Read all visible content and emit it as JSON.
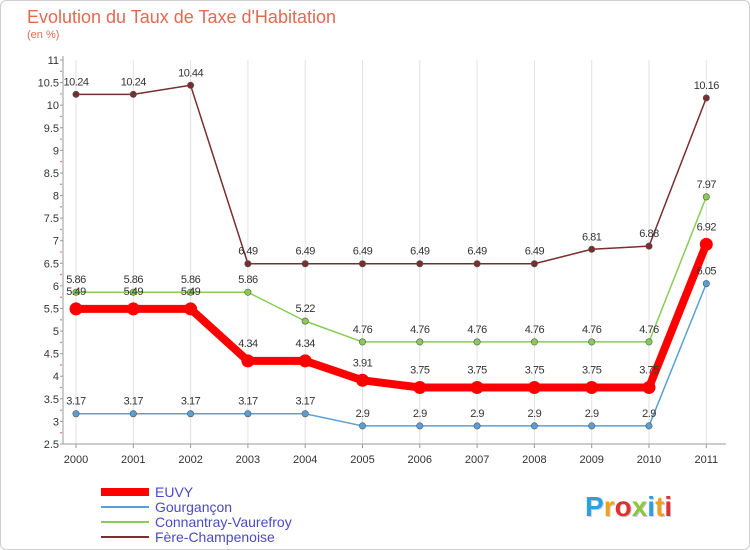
{
  "title": "Evolution du Taux de Taxe d'Habitation",
  "subtitle": "(en %)",
  "brand": {
    "letters": [
      "P",
      "r",
      "o",
      "x",
      "i",
      "t",
      "i"
    ],
    "colors": [
      "#2aa0e0",
      "#f0a020",
      "#e03030",
      "#8cc63f",
      "#2aa0e0",
      "#f0a020",
      "#e03030"
    ]
  },
  "chart_data": {
    "type": "line",
    "x": [
      "2000",
      "2001",
      "2002",
      "2003",
      "2004",
      "2005",
      "2006",
      "2007",
      "2008",
      "2009",
      "2010",
      "2011"
    ],
    "ylim": [
      2.5,
      11
    ],
    "yticks": [
      "2.5",
      "3",
      "3.5",
      "4",
      "4.5",
      "5",
      "5.5",
      "6",
      "6.5",
      "7",
      "7.5",
      "8",
      "8.5",
      "9",
      "9.5",
      "10",
      "10.5",
      "11"
    ],
    "grid": "vertical",
    "legend_position": "bottom-left",
    "series": [
      {
        "name": "EUVY",
        "color": "#ff0000",
        "values": [
          5.49,
          5.49,
          5.49,
          4.34,
          4.34,
          3.91,
          3.75,
          3.75,
          3.75,
          3.75,
          3.75,
          6.92
        ],
        "labels": [
          "5.49",
          "5.49",
          "5.49",
          "4.34",
          "4.34",
          "3.91",
          "3.75",
          "3.75",
          "3.75",
          "3.75",
          "3.75",
          "6.92"
        ]
      },
      {
        "name": "Gourgançon",
        "color": "#5a9fd4",
        "values": [
          3.17,
          3.17,
          3.17,
          3.17,
          3.17,
          2.9,
          2.9,
          2.9,
          2.9,
          2.9,
          2.9,
          6.05
        ],
        "labels": [
          "3.17",
          "3.17",
          "3.17",
          "3.17",
          "3.17",
          "2.9",
          "2.9",
          "2.9",
          "2.9",
          "2.9",
          "2.9",
          "6.05"
        ]
      },
      {
        "name": "Connantray-Vaurefroy",
        "color": "#88cc55",
        "values": [
          5.86,
          5.86,
          5.86,
          5.86,
          5.22,
          4.76,
          4.76,
          4.76,
          4.76,
          4.76,
          4.76,
          7.97
        ],
        "labels": [
          "5.86",
          "5.86",
          "5.86",
          "5.86",
          "5.22",
          "4.76",
          "4.76",
          "4.76",
          "4.76",
          "4.76",
          "4.76",
          "7.97"
        ]
      },
      {
        "name": "Fère-Champenoise",
        "color": "#7a2e2e",
        "values": [
          10.24,
          10.24,
          10.44,
          6.49,
          6.49,
          6.49,
          6.49,
          6.49,
          6.49,
          6.81,
          6.88,
          10.16
        ],
        "labels": [
          "10.24",
          "10.24",
          "10.44",
          "6.49",
          "6.49",
          "6.49",
          "6.49",
          "6.49",
          "6.49",
          "6.81",
          "6.88",
          "10.16"
        ]
      }
    ]
  }
}
